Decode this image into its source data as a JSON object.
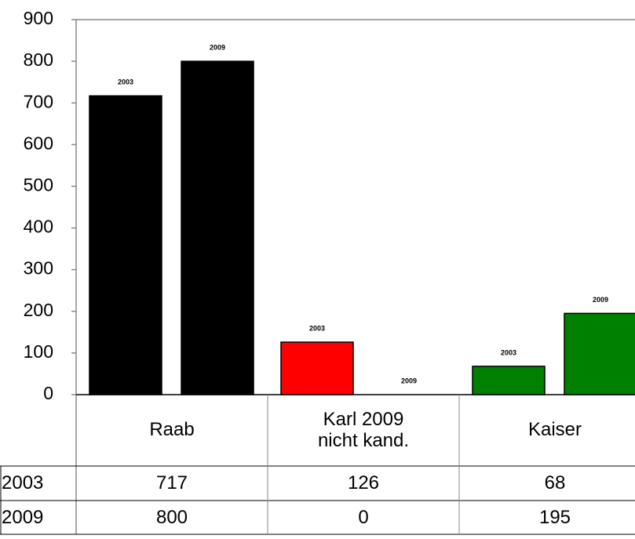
{
  "chart_data": {
    "type": "bar",
    "categories": [
      "Raab",
      "Karl 2009\nnicht kand.",
      "Kaiser"
    ],
    "colors": [
      "#000000",
      "#ff0000",
      "#008000"
    ],
    "series": [
      {
        "name": "2003",
        "values": [
          717,
          126,
          68
        ]
      },
      {
        "name": "2009",
        "values": [
          800,
          0,
          195
        ]
      }
    ],
    "ylim": [
      0,
      900
    ],
    "yticks": [
      0,
      100,
      200,
      300,
      400,
      500,
      600,
      700,
      800,
      900
    ],
    "grid": false,
    "data_table": true
  }
}
